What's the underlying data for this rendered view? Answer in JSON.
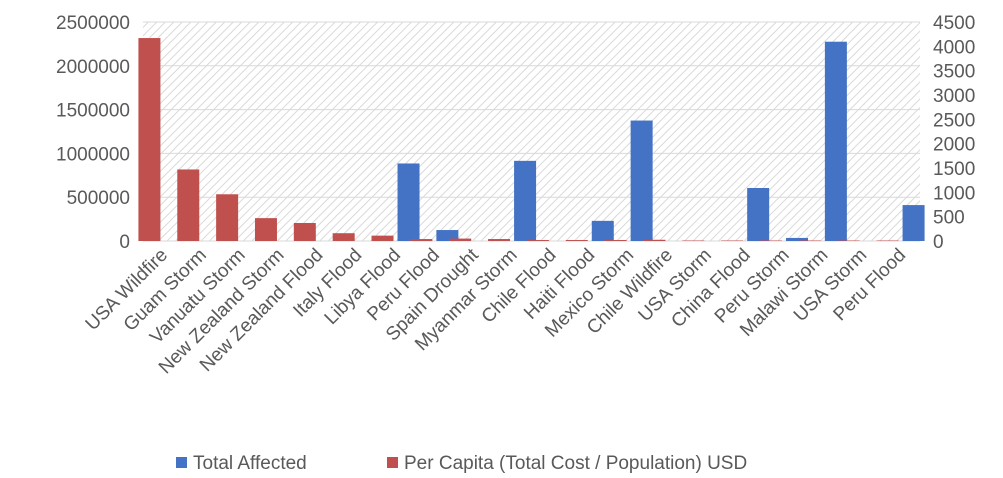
{
  "chart_data": {
    "type": "bar",
    "categories": [
      "USA Wildfire",
      "Guam Storm",
      "Vanuatu Storm",
      "New Zealand Storm",
      "New Zealand Flood",
      "Italy Flood",
      "Libya Flood",
      "Peru Flood",
      "Spain Drought",
      "Myanmar Storm",
      "Chile Flood",
      "Haiti Flood",
      "Mexico Storm",
      "Chile Wildfire",
      "USA Storm",
      "China Flood",
      "Peru Storm",
      "Malawi Storm",
      "USA Storm",
      "Peru Flood"
    ],
    "series": [
      {
        "name": "Total Affected",
        "axis": "left",
        "color": "#4472C4",
        "values": [
          0,
          0,
          0,
          0,
          0,
          0,
          885000,
          125000,
          0,
          915000,
          0,
          230000,
          1375000,
          0,
          0,
          605000,
          35000,
          2275000,
          0,
          410000
        ]
      },
      {
        "name": "Per Capita (Total Cost / Population) USD",
        "axis": "right",
        "color": "#C0504D",
        "values": [
          4170,
          1470,
          960,
          470,
          370,
          160,
          110,
          40,
          50,
          40,
          20,
          20,
          20,
          25,
          10,
          10,
          10,
          10,
          10,
          10
        ]
      }
    ],
    "y_left": {
      "min": 0,
      "max": 2500000,
      "ticks": [
        "0",
        "500000",
        "1000000",
        "1500000",
        "2000000",
        "2500000"
      ]
    },
    "y_right": {
      "min": 0,
      "max": 4500,
      "ticks": [
        "0",
        "500",
        "1000",
        "1500",
        "2000",
        "2500",
        "3000",
        "3500",
        "4000",
        "4500"
      ]
    },
    "background": "hatched light gray",
    "legend": "bottom",
    "title": "",
    "xlabel": "",
    "ylabel": ""
  }
}
